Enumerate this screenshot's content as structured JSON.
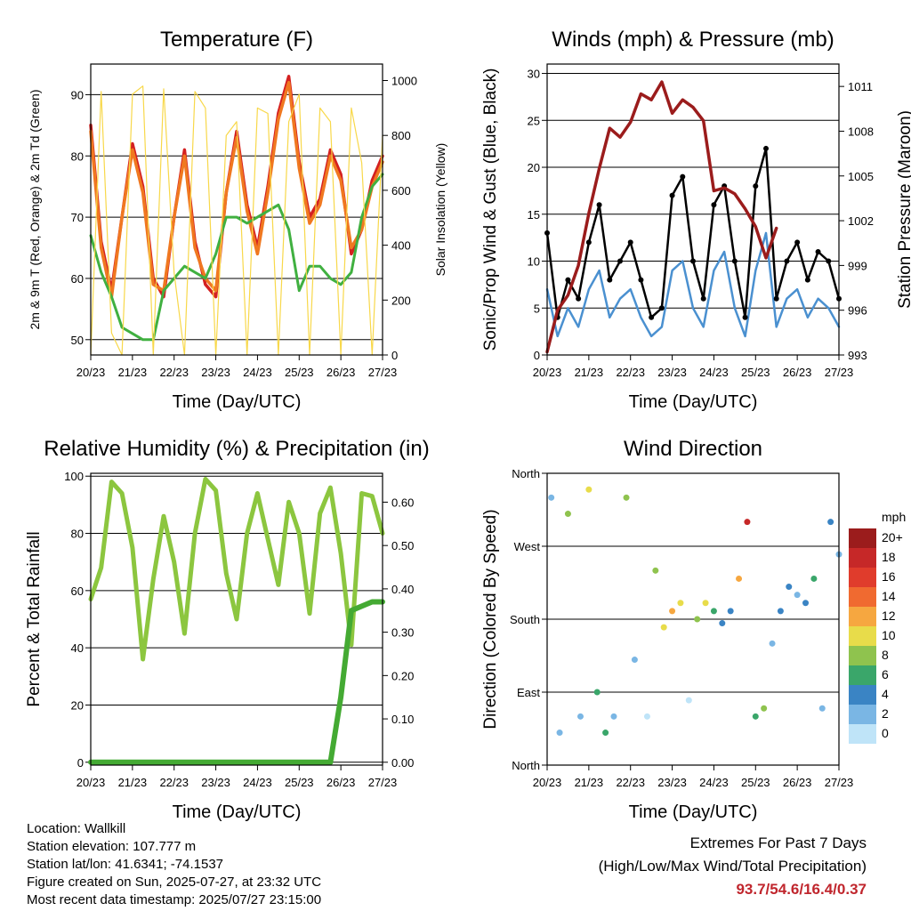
{
  "x_ticks": [
    "20/23",
    "21/23",
    "22/23",
    "23/23",
    "24/23",
    "25/23",
    "26/23",
    "27/23"
  ],
  "info": {
    "location": "Location: Wallkill",
    "elevation": "Station elevation: 107.777 m",
    "latlon": "Station lat/lon: 41.6341; -74.1537",
    "created": "Figure created on Sun, 2025-07-27, at 23:32 UTC",
    "recent": "Most recent data timestamp: 2025/07/27 23:15:00"
  },
  "extremes": {
    "title": "Extremes For Past 7 Days",
    "subtitle": "(High/Low/Max Wind/Total Precipitation)",
    "values": "93.7/54.6/16.4/0.37",
    "color": "#c0262d"
  },
  "chart_data": [
    {
      "type": "line",
      "title": "Temperature (F)",
      "xlabel": "Time (Day/UTC)",
      "ylabel": "2m & 9m T (Red, Orange) & 2m Td (Green)",
      "ylabel_right": "Solar Insolation (Yellow)",
      "ylim": [
        47.5,
        95
      ],
      "ylim_right": [
        0,
        1060
      ],
      "yticks": [
        50,
        60,
        70,
        80,
        90
      ],
      "yticks_right": [
        0,
        200,
        400,
        600,
        800,
        1000
      ],
      "x": [
        0,
        0.25,
        0.5,
        0.75,
        1,
        1.25,
        1.5,
        1.75,
        2,
        2.25,
        2.5,
        2.75,
        3,
        3.25,
        3.5,
        3.75,
        4,
        4.25,
        4.5,
        4.75,
        5,
        5.25,
        5.5,
        5.75,
        6,
        6.25,
        6.5,
        6.75,
        7
      ],
      "series": [
        {
          "color": "#d42020",
          "values": [
            85,
            66,
            58,
            70,
            82,
            75,
            60,
            57,
            70,
            81,
            66,
            59,
            57,
            74,
            84,
            72,
            65,
            75,
            87,
            93,
            79,
            70,
            73,
            81,
            77,
            64,
            68,
            76,
            80
          ]
        },
        {
          "color": "#f07820",
          "values": [
            84,
            65,
            57,
            70,
            81,
            74,
            59,
            58,
            70,
            80,
            65,
            60,
            58,
            74,
            83,
            71,
            64,
            74,
            86,
            92,
            78,
            69,
            72,
            80,
            76,
            65,
            68,
            75,
            79
          ]
        },
        {
          "color": "#40b040",
          "values": [
            67,
            61,
            57,
            52,
            51,
            50,
            50,
            58,
            60,
            62,
            61,
            60,
            64,
            70,
            70,
            69,
            70,
            71,
            72,
            68,
            58,
            62,
            62,
            60,
            59,
            61,
            70,
            75,
            77
          ]
        },
        {
          "color": "#f8d84a",
          "values": [
            0,
            960,
            80,
            0,
            950,
            980,
            0,
            970,
            300,
            0,
            960,
            900,
            0,
            800,
            850,
            0,
            900,
            880,
            0,
            850,
            950,
            0,
            900,
            850,
            0,
            900,
            700,
            0,
            800
          ]
        }
      ]
    },
    {
      "type": "line",
      "title": "Winds (mph) & Pressure (mb)",
      "xlabel": "Time (Day/UTC)",
      "ylabel": "Sonic/Prop Wind & Gust (Blue, Black)",
      "ylabel_right": "Station Pressure (Maroon)",
      "ylim": [
        0,
        31
      ],
      "ylim_right": [
        993,
        1012.5
      ],
      "yticks": [
        0,
        5,
        10,
        15,
        20,
        25,
        30
      ],
      "yticks_right": [
        993,
        996,
        999,
        1002,
        1005,
        1008,
        1011
      ],
      "x": [
        0,
        0.25,
        0.5,
        0.75,
        1,
        1.25,
        1.5,
        1.75,
        2,
        2.25,
        2.5,
        2.75,
        3,
        3.25,
        3.5,
        3.75,
        4,
        4.25,
        4.5,
        4.75,
        5,
        5.25,
        5.5,
        5.75,
        6,
        6.25,
        6.5,
        6.75,
        7
      ],
      "series": [
        {
          "color": "#4a90d0",
          "values": [
            7,
            2,
            5,
            3,
            7,
            9,
            4,
            6,
            7,
            4,
            2,
            3,
            9,
            10,
            5,
            3,
            9,
            11,
            5,
            2,
            9,
            13,
            3,
            6,
            7,
            4,
            6,
            5,
            3
          ]
        },
        {
          "color": "#000000",
          "values": [
            13,
            4,
            8,
            6,
            12,
            16,
            8,
            10,
            12,
            8,
            4,
            5,
            17,
            19,
            10,
            6,
            16,
            18,
            10,
            4,
            18,
            22,
            6,
            10,
            12,
            8,
            11,
            10,
            6
          ]
        },
        {
          "color": "#9b1c1c",
          "values": [
            993.2,
            996,
            997,
            999,
            1002.5,
            1005.5,
            1008.2,
            1007.6,
            1008.6,
            1010.5,
            1010.1,
            1011.3,
            1009.2,
            1010.1,
            1009.6,
            1008.7,
            1004,
            1004.2,
            1003.8,
            1002.8,
            1001.6,
            999.5,
            1001.5,
            null,
            null,
            null,
            null,
            null,
            null
          ]
        }
      ]
    },
    {
      "type": "line",
      "title": "Relative Humidity (%) & Precipitation (in)",
      "xlabel": "Time (Day/UTC)",
      "ylabel": "Percent & Total Rainfall",
      "ylim": [
        -1,
        101
      ],
      "ylim_right": [
        -0.0066,
        0.6666
      ],
      "yticks": [
        0,
        20,
        40,
        60,
        80,
        100
      ],
      "yticks_right": [
        0.0,
        0.1,
        0.2,
        0.3,
        0.4,
        0.5,
        0.6
      ],
      "yticks_right_labels": [
        "0.00",
        "0.10",
        "0.20",
        "0.30",
        "0.40",
        "0.50",
        "0.60"
      ],
      "x": [
        0,
        0.25,
        0.5,
        0.75,
        1,
        1.25,
        1.5,
        1.75,
        2,
        2.25,
        2.5,
        2.75,
        3,
        3.25,
        3.5,
        3.75,
        4,
        4.25,
        4.5,
        4.75,
        5,
        5.25,
        5.5,
        5.75,
        6,
        6.25,
        6.5,
        6.75,
        7
      ],
      "series": [
        {
          "color": "#8cc63f",
          "values": [
            57,
            68,
            98,
            94,
            75,
            36,
            64,
            86,
            70,
            45,
            80,
            99,
            95,
            66,
            50,
            80,
            94,
            78,
            62,
            91,
            80,
            52,
            87,
            96,
            73,
            41,
            94,
            93,
            80
          ]
        },
        {
          "color": "#44aa33",
          "values": [
            0,
            0,
            0,
            0,
            0,
            0,
            0,
            0,
            0,
            0,
            0,
            0,
            0,
            0,
            0,
            0,
            0,
            0,
            0,
            0,
            0,
            0,
            0,
            0,
            0.15,
            0.35,
            0.36,
            0.37,
            0.37
          ]
        }
      ]
    },
    {
      "type": "scatter",
      "title": "Wind Direction",
      "xlabel": "Time (Day/UTC)",
      "ylabel": "Direction (Colored By Speed)",
      "ylim": [
        0,
        360
      ],
      "yticks": [
        0,
        90,
        180,
        270,
        360
      ],
      "ytick_labels": [
        "North",
        "East",
        "South",
        "West",
        "North"
      ],
      "legend_title": "mph",
      "legend": [
        {
          "label": "20+",
          "color": "#9b1c1c"
        },
        {
          "label": "18",
          "color": "#c62828"
        },
        {
          "label": "16",
          "color": "#e03c2c"
        },
        {
          "label": "14",
          "color": "#f06a30"
        },
        {
          "label": "12",
          "color": "#f6a740"
        },
        {
          "label": "10",
          "color": "#e8dc4a"
        },
        {
          "label": "8",
          "color": "#8fc34e"
        },
        {
          "label": "6",
          "color": "#3aa66a"
        },
        {
          "label": "4",
          "color": "#3a84c4"
        },
        {
          "label": "2",
          "color": "#7ab6e4"
        },
        {
          "label": "0",
          "color": "#bfe4f8"
        }
      ],
      "x": [
        0.1,
        0.3,
        0.5,
        0.8,
        1.0,
        1.2,
        1.4,
        1.6,
        1.9,
        2.1,
        2.4,
        2.6,
        2.8,
        3.0,
        3.2,
        3.4,
        3.6,
        3.8,
        4.0,
        4.2,
        4.4,
        4.6,
        4.8,
        5.0,
        5.2,
        5.4,
        5.6,
        5.8,
        6.0,
        6.2,
        6.4,
        6.6,
        6.8,
        7.0
      ],
      "y": [
        330,
        40,
        310,
        60,
        340,
        90,
        40,
        60,
        330,
        130,
        60,
        240,
        170,
        190,
        200,
        80,
        180,
        200,
        190,
        175,
        190,
        230,
        300,
        60,
        70,
        150,
        190,
        220,
        210,
        200,
        230,
        70,
        300,
        260
      ],
      "speed": [
        3,
        2,
        8,
        3,
        10,
        6,
        7,
        3,
        9,
        2,
        1,
        8,
        10,
        12,
        10,
        1,
        9,
        11,
        6,
        5,
        4,
        12,
        18,
        6,
        8,
        3,
        4,
        4,
        3,
        5,
        6,
        3,
        4,
        3
      ]
    }
  ]
}
